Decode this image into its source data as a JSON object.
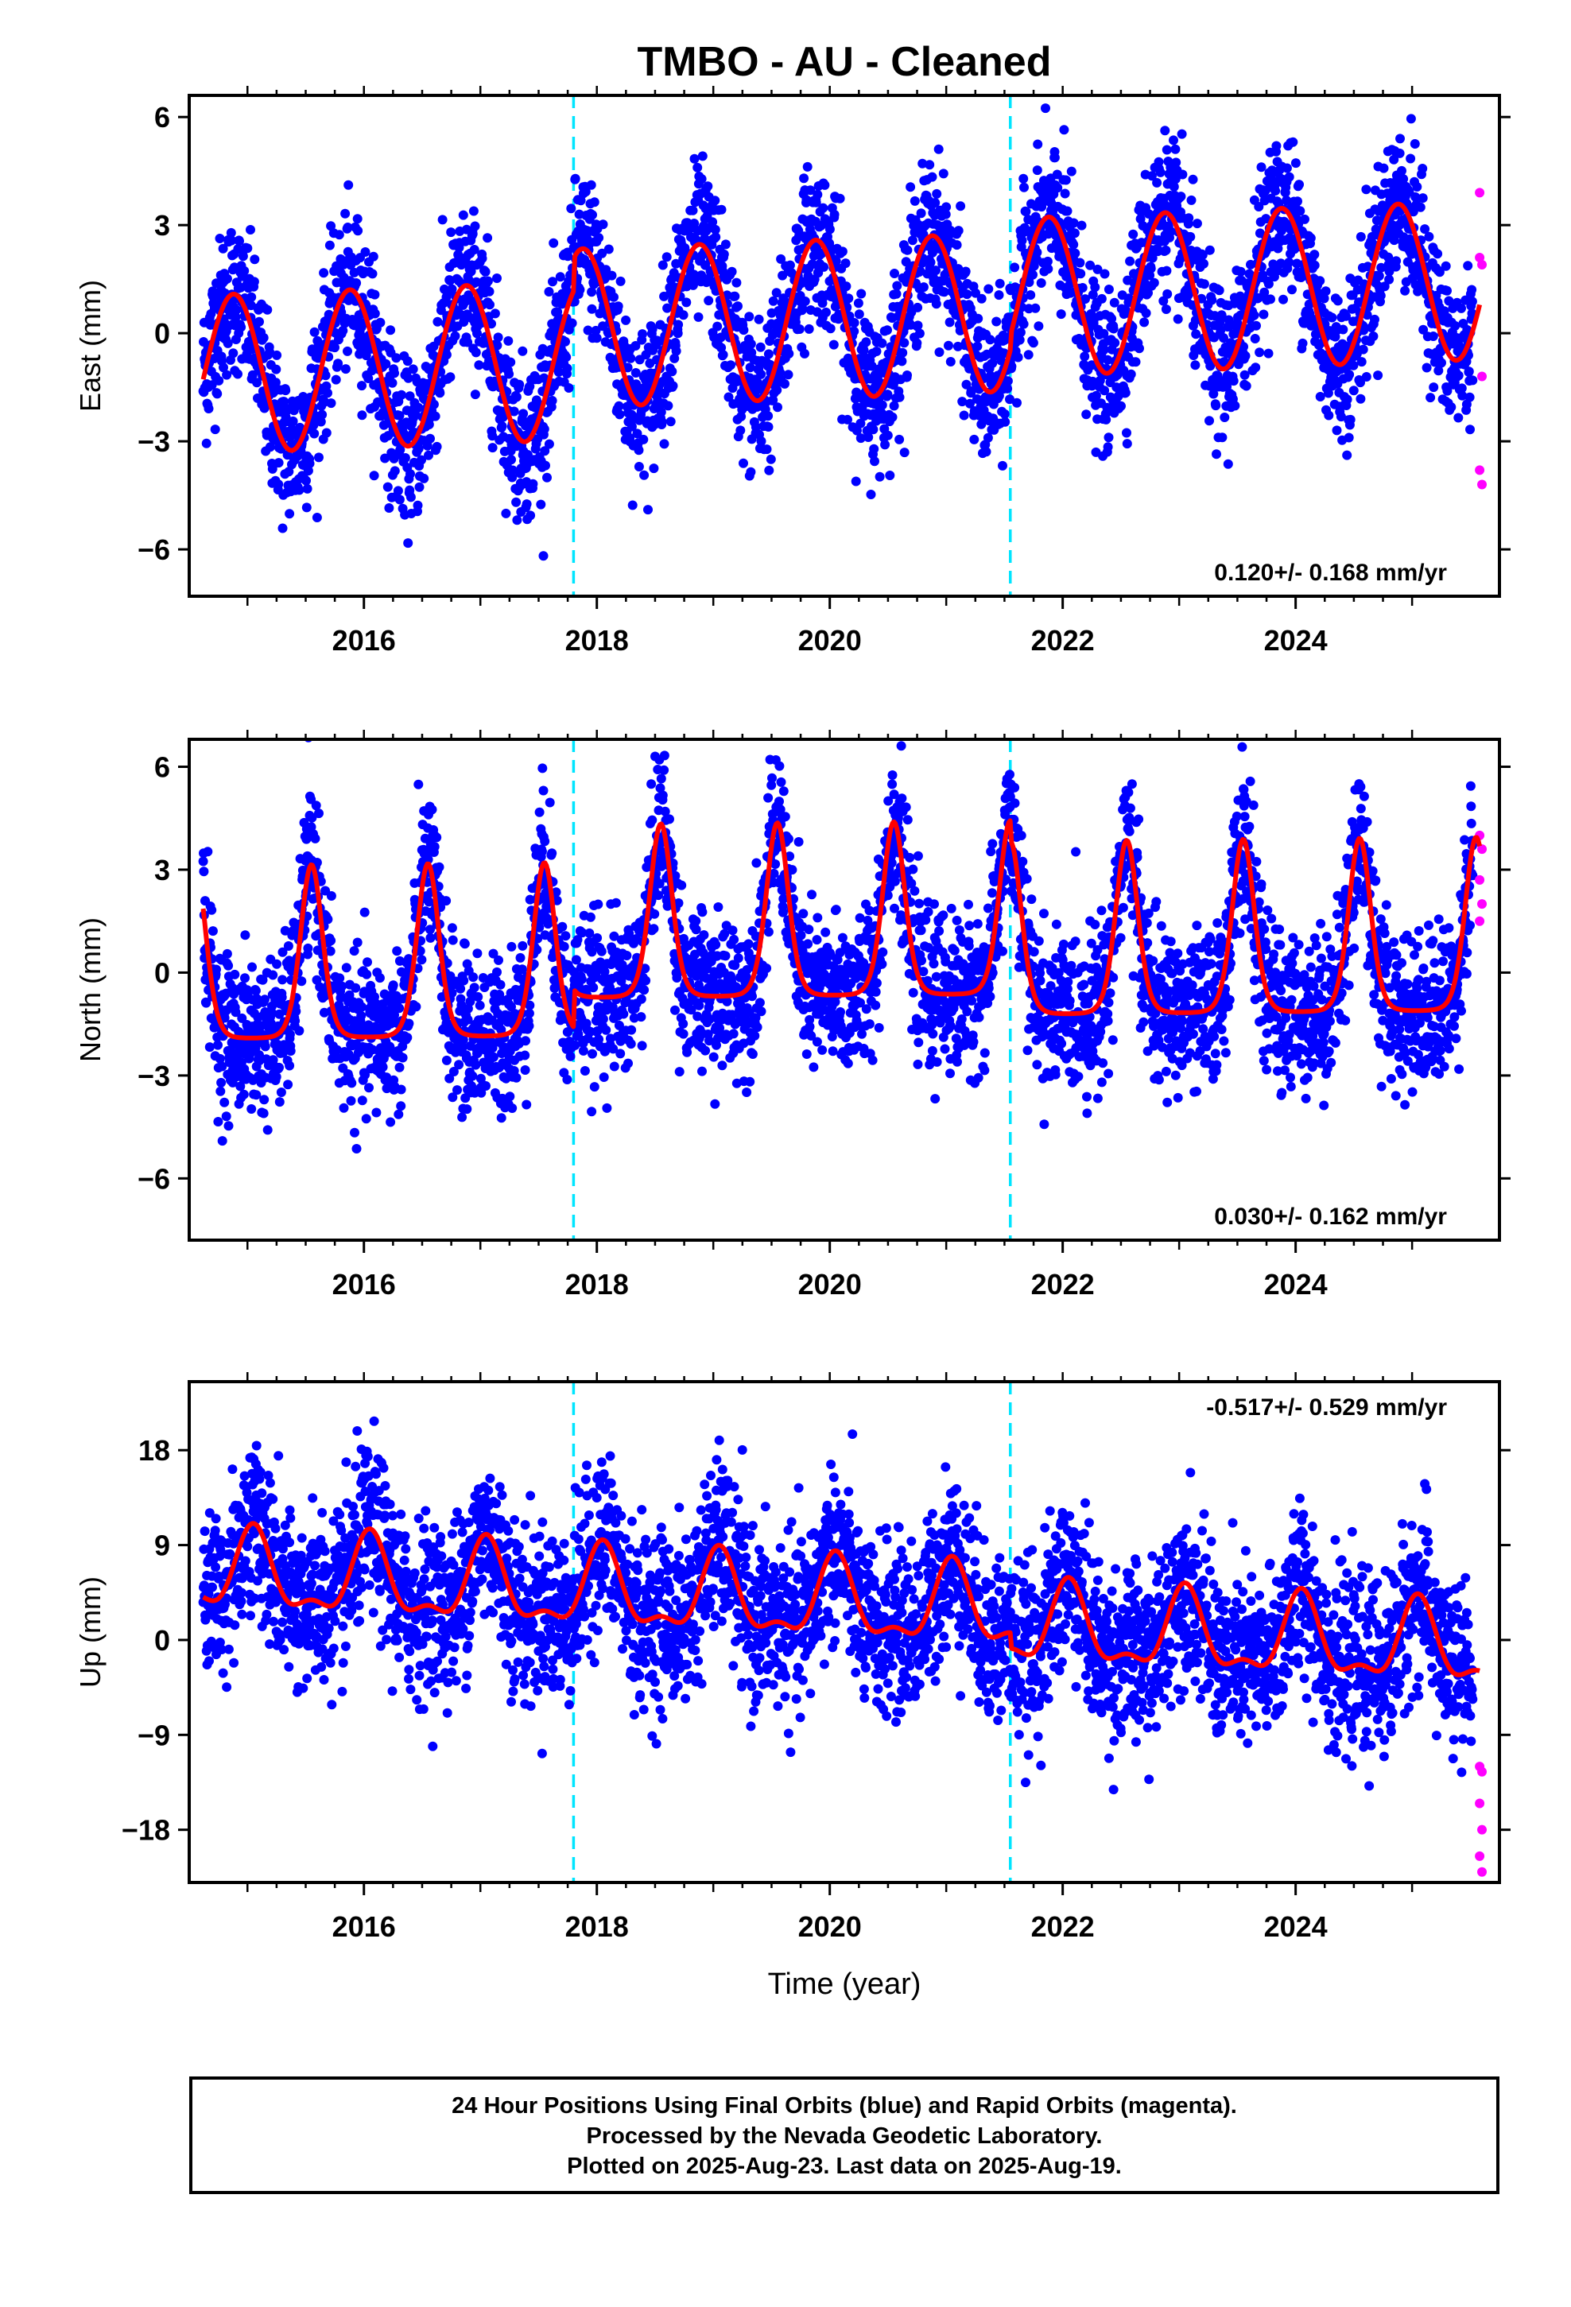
{
  "title": "TMBO  - AU - Cleaned",
  "xlabel": "Time (year)",
  "footer": {
    "line1": "24 Hour Positions Using Final Orbits (blue) and Rapid Orbits (magenta).",
    "line2": "Processed by the Nevada Geodetic Laboratory.",
    "line3": "Plotted on 2025-Aug-23. Last data on 2025-Aug-19."
  },
  "colors": {
    "final_orbits": "#0000ff",
    "rapid_orbits": "#ff00ff",
    "fit": "#ff0000",
    "equipment_change": "#00e5ff"
  },
  "chart_data": [
    {
      "type": "scatter",
      "ylabel": "East (mm)",
      "rate": "0.120+/- 0.168 mm/yr",
      "xlim": [
        2014.5,
        2025.75
      ],
      "ylim": [
        -7.3,
        6.6
      ],
      "yticks": [
        -6,
        -3,
        0,
        3,
        6
      ],
      "ytick_labels": [
        "−6",
        "−3",
        "0",
        "3",
        "6"
      ],
      "xticks": [
        2016,
        2018,
        2020,
        2022,
        2024
      ],
      "breaks": [
        2017.8,
        2021.55
      ],
      "series": [
        {
          "name": "Final Orbits (blue)",
          "x_range": [
            2014.62,
            2025.52
          ],
          "n": 3900,
          "model": {
            "offset": -0.5,
            "trend": 0.12,
            "segment_offsets": [
              [
                2017.8,
                0.9
              ],
              [
                2021.55,
                0.4
              ]
            ],
            "annual_amp": 2.2,
            "annual_peak": 0.88,
            "scatter_sd": 1.05
          }
        },
        {
          "name": "Rapid Orbits (magenta)",
          "points": [
            [
              2025.58,
              3.9
            ],
            [
              2025.58,
              2.1
            ],
            [
              2025.6,
              1.9
            ],
            [
              2025.6,
              -1.2
            ],
            [
              2025.58,
              -3.8
            ],
            [
              2025.6,
              -4.2
            ]
          ]
        }
      ],
      "fit": {
        "name": "fit",
        "x_range": [
          2014.62,
          2025.58
        ],
        "model": {
          "offset": -0.5,
          "trend": 0.12,
          "segment_offsets": [
            [
              2017.8,
              0.9
            ],
            [
              2021.55,
              0.4
            ]
          ],
          "annual_amp": 2.2,
          "annual_peak": 0.88
        }
      }
    },
    {
      "type": "scatter",
      "ylabel": "North (mm)",
      "rate": "0.030+/- 0.162 mm/yr",
      "xlim": [
        2014.5,
        2025.75
      ],
      "ylim": [
        -7.8,
        6.8
      ],
      "yticks": [
        -6,
        -3,
        0,
        3,
        6
      ],
      "ytick_labels": [
        "−6",
        "−3",
        "0",
        "3",
        "6"
      ],
      "xticks": [
        2016,
        2018,
        2020,
        2022,
        2024
      ],
      "breaks": [
        2017.8,
        2021.55
      ],
      "series": [
        {
          "name": "Final Orbits (blue)",
          "x_range": [
            2014.62,
            2025.52
          ],
          "n": 3900,
          "model": {
            "offset": -0.8,
            "trend": 0.03,
            "segment_offsets": [
              [
                2017.8,
                1.1
              ],
              [
                2021.55,
                -0.6
              ]
            ],
            "annual_amp": 2.4,
            "annual_peak": 0.55,
            "sharpness": 3,
            "scatter_sd": 1.1
          }
        },
        {
          "name": "Rapid Orbits (magenta)",
          "points": [
            [
              2025.58,
              4.0
            ],
            [
              2025.6,
              3.6
            ],
            [
              2025.58,
              2.7
            ],
            [
              2025.6,
              2.0
            ],
            [
              2025.58,
              1.5
            ]
          ]
        }
      ],
      "fit": {
        "name": "fit",
        "x_range": [
          2014.62,
          2025.58
        ],
        "model": {
          "offset": -0.8,
          "trend": 0.03,
          "segment_offsets": [
            [
              2017.8,
              1.1
            ],
            [
              2021.55,
              -0.6
            ]
          ],
          "annual_amp": 2.4,
          "annual_peak": 0.55,
          "sharpness": 3
        }
      }
    },
    {
      "type": "scatter",
      "ylabel": "Up (mm)",
      "rate": "-0.517+/- 0.529 mm/yr",
      "xlim": [
        2014.5,
        2025.75
      ],
      "ylim": [
        -23.0,
        24.5
      ],
      "yticks": [
        -18,
        -9,
        0,
        9,
        18
      ],
      "ytick_labels": [
        "−18",
        "−9",
        "0",
        "9",
        "18"
      ],
      "xticks": [
        2016,
        2018,
        2020,
        2022,
        2024
      ],
      "breaks": [
        2017.8,
        2021.55
      ],
      "series": [
        {
          "name": "Final Orbits (blue)",
          "x_range": [
            2014.62,
            2025.52
          ],
          "n": 3900,
          "model": {
            "offset": 3.5,
            "trend": -0.517,
            "segment_offsets": [
              [
                2017.8,
                0.0
              ],
              [
                2021.55,
                -1.5
              ]
            ],
            "annual_amp": 3.5,
            "annual_peak": 0.05,
            "semiannual_amp": 1.5,
            "scatter_sd": 4.0
          }
        },
        {
          "name": "Rapid Orbits (magenta)",
          "points": [
            [
              2025.58,
              -12.0
            ],
            [
              2025.6,
              -12.5
            ],
            [
              2025.58,
              -15.5
            ],
            [
              2025.6,
              -18.0
            ],
            [
              2025.58,
              -20.5
            ],
            [
              2025.6,
              -22.0
            ]
          ]
        }
      ],
      "fit": {
        "name": "fit",
        "x_range": [
          2014.62,
          2025.58
        ],
        "model": {
          "offset": 3.5,
          "trend": -0.517,
          "segment_offsets": [
            [
              2017.8,
              0.0
            ],
            [
              2021.55,
              -1.5
            ]
          ],
          "annual_amp": 3.5,
          "annual_peak": 0.05,
          "semiannual_amp": 1.5
        }
      }
    }
  ]
}
